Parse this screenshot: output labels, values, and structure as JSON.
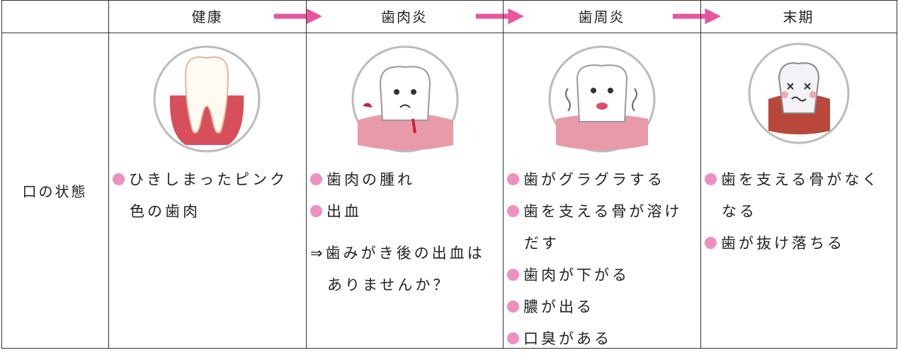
{
  "table": {
    "columns": [
      "健康",
      "歯肉炎",
      "歯周炎",
      "末期"
    ],
    "row_label": "口の状態",
    "cells": [
      {
        "items": [
          "ひきしまったピンク色の歯肉"
        ]
      },
      {
        "items": [
          "歯肉の腫れ",
          "出血"
        ],
        "note": "⇒歯みがき後の出血はありませんか？"
      },
      {
        "items": [
          "歯がグラグラする",
          "歯を支える骨が溶けだす",
          "歯肉が下がる",
          "膿が出る",
          "口臭がある"
        ]
      },
      {
        "items": [
          "歯を支える骨がなくなる",
          "歯が抜け落ちる"
        ]
      }
    ]
  }
}
